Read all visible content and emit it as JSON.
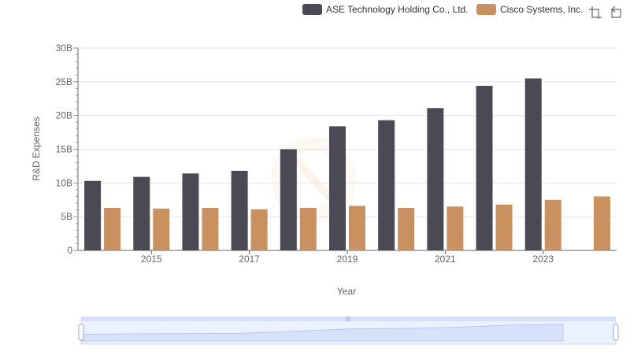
{
  "chart_data": {
    "type": "bar",
    "title": "",
    "xlabel": "Year",
    "ylabel": "R&D Expenses",
    "categories": [
      "2014",
      "2015",
      "2016",
      "2017",
      "2018",
      "2019",
      "2020",
      "2021",
      "2022",
      "2023",
      "2024"
    ],
    "x_tick_labels": [
      "2015",
      "2017",
      "2019",
      "2021",
      "2023"
    ],
    "y_tick_labels": [
      "0",
      "5B",
      "10B",
      "15B",
      "20B",
      "25B",
      "30B"
    ],
    "ylim": [
      0,
      30000000000
    ],
    "grid": "horizontal",
    "legend_position": "top-right",
    "series": [
      {
        "name": "ASE Technology Holding Co., Ltd.",
        "color": "#4a4a55",
        "values": [
          10300000000,
          10900000000,
          11400000000,
          11800000000,
          15000000000,
          18400000000,
          19300000000,
          21100000000,
          24400000000,
          25500000000,
          null
        ]
      },
      {
        "name": "Cisco Systems, Inc.",
        "color": "#c8915f",
        "values": [
          6300000000,
          6200000000,
          6300000000,
          6100000000,
          6300000000,
          6600000000,
          6300000000,
          6500000000,
          6800000000,
          7500000000,
          8000000000
        ]
      }
    ]
  },
  "toolbox": {
    "zoom_icon": "zoom-icon",
    "restore_icon": "restore-icon"
  },
  "datazoom": {
    "range_percent": [
      0,
      100
    ]
  }
}
